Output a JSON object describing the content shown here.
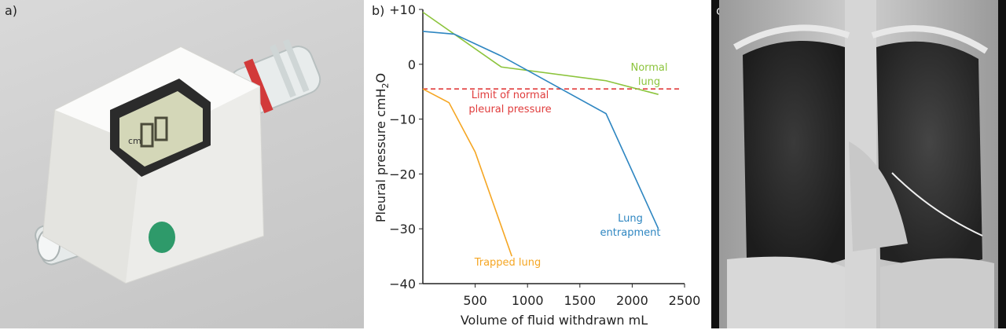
{
  "panels": {
    "a": {
      "label": "a)",
      "display_unit": "cm"
    },
    "b": {
      "label": "b)"
    },
    "c": {
      "label": "c)"
    }
  },
  "chart_data": {
    "type": "line",
    "xlabel": "Volume of fluid withdrawn mL",
    "ylabel": "Pleural pressure cmH2O",
    "xlim": [
      0,
      2500
    ],
    "ylim": [
      -40,
      10
    ],
    "x_ticks": [
      "500",
      "1000",
      "1500",
      "2000",
      "2500"
    ],
    "y_ticks": [
      "+10",
      "0",
      "−10",
      "−20",
      "−30",
      "−40"
    ],
    "series": [
      {
        "name": "Normal lung",
        "color": "#8cc43c",
        "x": [
          0,
          750,
          1750,
          2250
        ],
        "y": [
          9.5,
          -0.5,
          -3,
          -5.5
        ]
      },
      {
        "name": "Lung entrapment",
        "color": "#2e86c1",
        "x": [
          0,
          300,
          750,
          1750,
          2250
        ],
        "y": [
          6,
          5.5,
          1.5,
          -9,
          -30
        ]
      },
      {
        "name": "Trapped lung",
        "color": "#f5a623",
        "x": [
          0,
          250,
          500,
          850
        ],
        "y": [
          -4.5,
          -7,
          -16,
          -35
        ]
      }
    ],
    "reference_line": {
      "label": "Limit of normal pleural pressure",
      "y": -4.5,
      "color": "#e03c3c",
      "style": "dashed"
    },
    "annotations": {
      "normal": [
        "Normal",
        "lung"
      ],
      "entrapment": [
        "Lung",
        "entrapment"
      ],
      "trapped": [
        "Trapped lung"
      ],
      "limit": [
        "Limit of normal",
        "pleural pressure"
      ]
    }
  }
}
